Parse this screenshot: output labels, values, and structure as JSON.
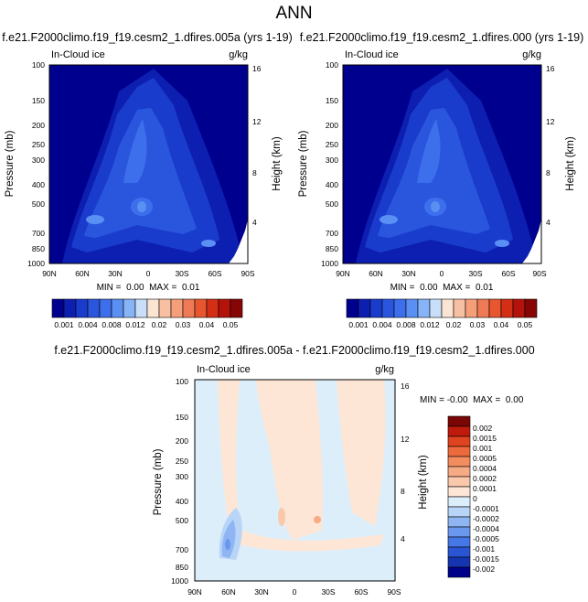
{
  "figure": {
    "title": "ANN"
  },
  "chart_data": [
    {
      "type": "heatmap",
      "title": "f.e21.F2000climo.f19_f19.cesm2_1.dfires.005a (yrs 1-19)",
      "field_label": "In-Cloud ice",
      "units": "g/kg",
      "ylabel": "Pressure (mb)",
      "ylabel2": "Height (km)",
      "x_ticks": [
        "90N",
        "60N",
        "30N",
        "0",
        "30S",
        "60S",
        "90S"
      ],
      "y_ticks": [
        "100",
        "150",
        "200",
        "250",
        "300",
        "400",
        "500",
        "700",
        "850",
        "1000"
      ],
      "y2_ticks": [
        "16",
        "12",
        "8",
        "4"
      ],
      "ylim": [
        1000,
        100
      ],
      "min_max": "MIN =  0.00  MAX =  0.01",
      "colorbar_labels": [
        "0.001",
        "0.004",
        "0.008",
        "0.012",
        "0.02",
        "0.03",
        "0.04",
        "0.05"
      ],
      "colorbar_colors": [
        "#00008f",
        "#0d1fb0",
        "#1a3ccc",
        "#2a56de",
        "#3d6fec",
        "#5a8ff3",
        "#86b4f6",
        "#c9dff9",
        "#fbe4d2",
        "#f8c0a2",
        "#f59e7a",
        "#f07a55",
        "#e8562f",
        "#d42e14",
        "#b3130a",
        "#870505"
      ]
    },
    {
      "type": "heatmap",
      "title": "f.e21.F2000climo.f19_f19.cesm2_1.dfires.000 (yrs 1-19)",
      "field_label": "In-Cloud ice",
      "units": "g/kg",
      "ylabel": "Pressure (mb)",
      "ylabel2": "Height (km)",
      "x_ticks": [
        "90N",
        "60N",
        "30N",
        "0",
        "30S",
        "60S",
        "90S"
      ],
      "y_ticks": [
        "100",
        "150",
        "200",
        "250",
        "300",
        "400",
        "500",
        "700",
        "850",
        "1000"
      ],
      "y2_ticks": [
        "16",
        "12",
        "8",
        "4"
      ],
      "ylim": [
        1000,
        100
      ],
      "min_max": "MIN =  0.00  MAX =  0.01",
      "colorbar_labels": [
        "0.001",
        "0.004",
        "0.008",
        "0.012",
        "0.02",
        "0.03",
        "0.04",
        "0.05"
      ],
      "colorbar_colors": [
        "#00008f",
        "#0d1fb0",
        "#1a3ccc",
        "#2a56de",
        "#3d6fec",
        "#5a8ff3",
        "#86b4f6",
        "#c9dff9",
        "#fbe4d2",
        "#f8c0a2",
        "#f59e7a",
        "#f07a55",
        "#e8562f",
        "#d42e14",
        "#b3130a",
        "#870505"
      ]
    },
    {
      "type": "heatmap",
      "title": "f.e21.F2000climo.f19_f19.cesm2_1.dfires.005a - f.e21.F2000climo.f19_f19.cesm2_1.dfires.000",
      "field_label": "In-Cloud ice",
      "units": "g/kg",
      "ylabel": "Pressure (mb)",
      "ylabel2": "Height (km)",
      "x_ticks": [
        "90N",
        "60N",
        "30N",
        "0",
        "30S",
        "60S",
        "90S"
      ],
      "y_ticks": [
        "100",
        "150",
        "200",
        "250",
        "300",
        "400",
        "500",
        "700",
        "850",
        "1000"
      ],
      "y2_ticks": [
        "16",
        "12",
        "8",
        "4"
      ],
      "ylim": [
        1000,
        100
      ],
      "min_max": "MIN = -0.00  MAX =  0.00",
      "colorbar_labels": [
        "0.002",
        "0.0015",
        "0.001",
        "0.0005",
        "0.0004",
        "0.0002",
        "0.0001",
        "0",
        "-0.0001",
        "-0.0002",
        "-0.0004",
        "-0.0005",
        "-0.001",
        "-0.0015",
        "-0.002"
      ],
      "colorbar_colors": [
        "#7a0606",
        "#c01a0d",
        "#e0431f",
        "#ed6a3c",
        "#f38d60",
        "#f6ab85",
        "#fac8ab",
        "#fde6d5",
        "#ddeefb",
        "#b8d5f8",
        "#8fb6f2",
        "#6a98ee",
        "#4677e6",
        "#2a55d2",
        "#1535b0",
        "#00028a"
      ]
    }
  ]
}
